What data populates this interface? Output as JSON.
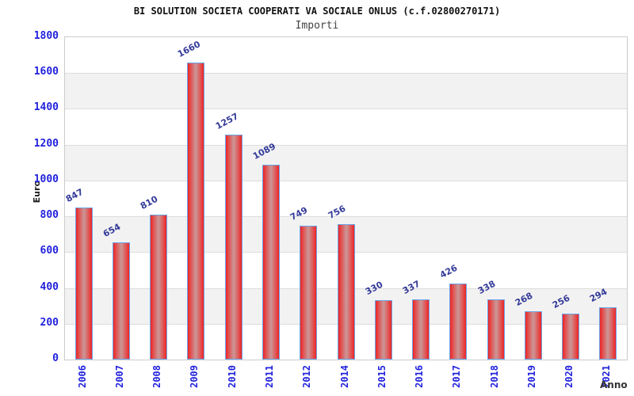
{
  "chart_data": {
    "type": "bar",
    "title": "BI SOLUTION SOCIETA COOPERATI VA SOCIALE ONLUS (c.f.02800270171)",
    "subtitle": "Importi",
    "xlabel": "Anno",
    "ylabel": "Euro",
    "categories": [
      "2006",
      "2007",
      "2008",
      "2009",
      "2010",
      "2011",
      "2012",
      "2014",
      "2015",
      "2016",
      "2017",
      "2018",
      "2019",
      "2020",
      "2021"
    ],
    "values": [
      847,
      654,
      810,
      1660,
      1257,
      1089,
      749,
      756,
      330,
      337,
      426,
      338,
      268,
      256,
      294
    ],
    "ylim": [
      0,
      1800
    ],
    "ytick_step": 200,
    "ytick_labels": [
      "0",
      "200",
      "400",
      "600",
      "800",
      "1000",
      "1200",
      "1400",
      "1600",
      "1800"
    ],
    "legend": "none",
    "grid": "horizontal-bands-alternating",
    "colors": {
      "bar_edge_fill": "#ee2424",
      "bar_mid_fill": "#e05555",
      "bar_center_fill": "#cb9797",
      "bar_border": "#6aa5e8",
      "tick_label": "#2222dd",
      "value_label": "#333a99",
      "band_fill": "#f2f2f2",
      "gridline": "#dddddd",
      "plot_border": "#cccccc",
      "title": "#111111",
      "subtitle": "#444444",
      "axis_title": "#222222"
    }
  }
}
